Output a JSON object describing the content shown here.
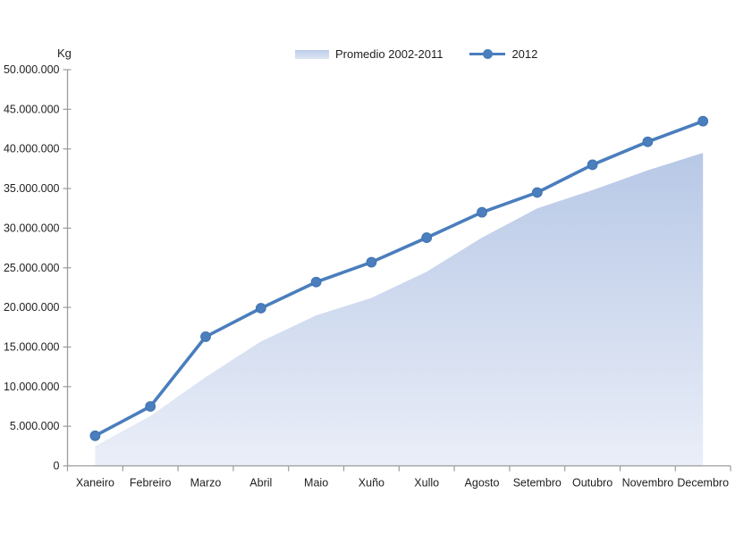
{
  "chart_data": {
    "type": "combo-area-line",
    "title": "",
    "unit_label": "Kg",
    "categories": [
      "Xaneiro",
      "Febreiro",
      "Marzo",
      "Abril",
      "Maio",
      "Xuño",
      "Xullo",
      "Agosto",
      "Setembro",
      "Outubro",
      "Novembro",
      "Decembro"
    ],
    "series": [
      {
        "name": "Promedio 2002-2011",
        "type": "area",
        "values": [
          2500000,
          6300000,
          11200000,
          15700000,
          19000000,
          21200000,
          24500000,
          28800000,
          32500000,
          34800000,
          37300000,
          39500000
        ],
        "fill_top": "#b7c8e6",
        "fill_bottom": "#eaeef8"
      },
      {
        "name": "2012",
        "type": "line",
        "values": [
          3800000,
          7500000,
          16300000,
          19900000,
          23200000,
          25700000,
          28800000,
          32000000,
          34500000,
          38000000,
          40900000,
          43500000
        ],
        "color": "#4a7ebd"
      }
    ],
    "ylim": [
      0,
      50000000
    ],
    "ytick_step": 5000000,
    "ytick_labels": [
      "0",
      "5.000.000",
      "10.000.000",
      "15.000.000",
      "20.000.000",
      "25.000.000",
      "30.000.000",
      "35.000.000",
      "40.000.000",
      "45.000.000",
      "50.000.000"
    ],
    "xlabel": "",
    "ylabel": "Kg",
    "grid": false,
    "legend_position": "top-center",
    "axis_color": "#9c9c9c",
    "text_color": "#1f1f1f"
  }
}
